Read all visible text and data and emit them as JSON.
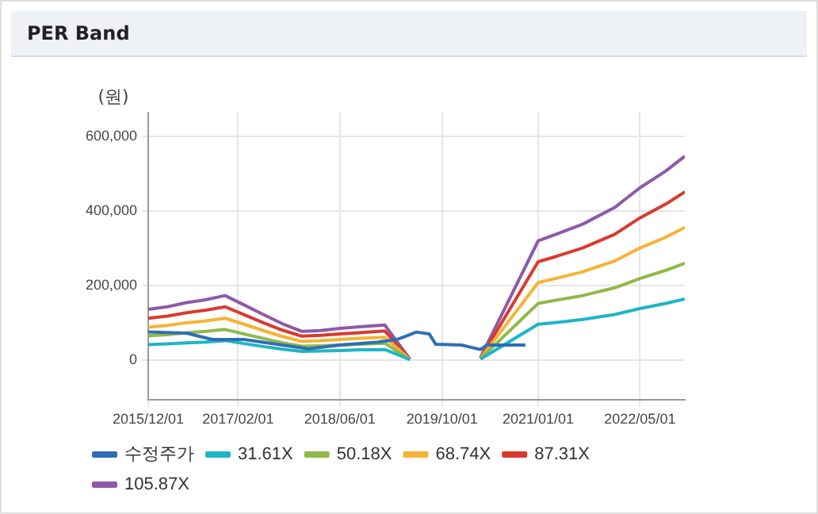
{
  "chart_data": {
    "type": "line",
    "title": "PER Band",
    "ylabel": "(원)",
    "x": [
      "2015-12",
      "2016-03",
      "2016-06",
      "2016-09",
      "2016-12",
      "2017-03",
      "2017-06",
      "2017-09",
      "2017-12",
      "2018-03",
      "2018-06",
      "2018-09",
      "2019-01",
      "2019-05",
      "2019-10",
      "2020-04",
      "2021-01",
      "2021-04",
      "2021-08",
      "2022-01",
      "2022-05",
      "2022-09",
      "2022-12"
    ],
    "series": [
      {
        "name": "수정주가",
        "color": "#2f6eb5",
        "x": [
          "2015-12",
          "2016-06",
          "2016-10",
          "2017-03",
          "2017-09",
          "2018-01",
          "2018-06",
          "2018-12",
          "2019-03",
          "2019-06",
          "2019-08",
          "2019-09",
          "2020-01",
          "2020-04",
          "2020-05",
          "2020-11"
        ],
        "values": [
          75000,
          72000,
          55000,
          55000,
          40000,
          30000,
          40000,
          48000,
          55000,
          75000,
          70000,
          42000,
          40000,
          28000,
          40000,
          40000
        ]
      },
      {
        "name": "31.61X",
        "color": "#1fb5c5",
        "values": [
          41000,
          43000,
          46000,
          48000,
          52000,
          44000,
          36000,
          29000,
          23000,
          24000,
          25000,
          27000,
          28000,
          1000,
          null,
          2000,
          96000,
          101000,
          109000,
          122000,
          138000,
          152000,
          164000
        ]
      },
      {
        "name": "50.18X",
        "color": "#8fba4a",
        "values": [
          65000,
          68000,
          73000,
          77000,
          82000,
          70000,
          58000,
          46000,
          37000,
          38000,
          40000,
          42000,
          45000,
          1000,
          null,
          3000,
          152000,
          161000,
          173000,
          194000,
          219000,
          241000,
          260000
        ]
      },
      {
        "name": "68.74X",
        "color": "#f5b335",
        "values": [
          88000,
          93000,
          100000,
          105000,
          112000,
          96000,
          79000,
          63000,
          50000,
          52000,
          55000,
          58000,
          61000,
          1000,
          null,
          4000,
          208000,
          220000,
          237000,
          266000,
          301000,
          330000,
          356000
        ]
      },
      {
        "name": "87.31X",
        "color": "#d93a2f",
        "values": [
          112000,
          118000,
          127000,
          134000,
          143000,
          122000,
          100000,
          80000,
          64000,
          66000,
          70000,
          73000,
          78000,
          2000,
          null,
          5000,
          264000,
          279000,
          301000,
          338000,
          382000,
          419000,
          452000
        ]
      },
      {
        "name": "105.87X",
        "color": "#8e5aa8",
        "values": [
          136000,
          143000,
          154000,
          162000,
          173000,
          148000,
          122000,
          97000,
          77000,
          79000,
          85000,
          89000,
          94000,
          2000,
          null,
          6000,
          320000,
          339000,
          365000,
          410000,
          463000,
          508000,
          548000
        ]
      }
    ],
    "xlim": [
      "2015-12-01",
      "2022-12-01"
    ],
    "xticks": [
      {
        "value": "2015-12-01",
        "label": "2015/12/01"
      },
      {
        "value": "2017-02-01",
        "label": "2017/02/01"
      },
      {
        "value": "2018-06-01",
        "label": "2018/06/01"
      },
      {
        "value": "2019-10-01",
        "label": "2019/10/01"
      },
      {
        "value": "2021-01-01",
        "label": "2021/01/01"
      },
      {
        "value": "2022-05-01",
        "label": "2022/05/01"
      }
    ],
    "ylim": [
      -108000,
      665000
    ],
    "yticks": [
      {
        "value": 0,
        "label": "0"
      },
      {
        "value": 200000,
        "label": "200,000"
      },
      {
        "value": 400000,
        "label": "400,000"
      },
      {
        "value": 600000,
        "label": "600,000"
      }
    ],
    "grid": true,
    "legend": "bottom",
    "marker": "none",
    "line_style": "solid"
  }
}
